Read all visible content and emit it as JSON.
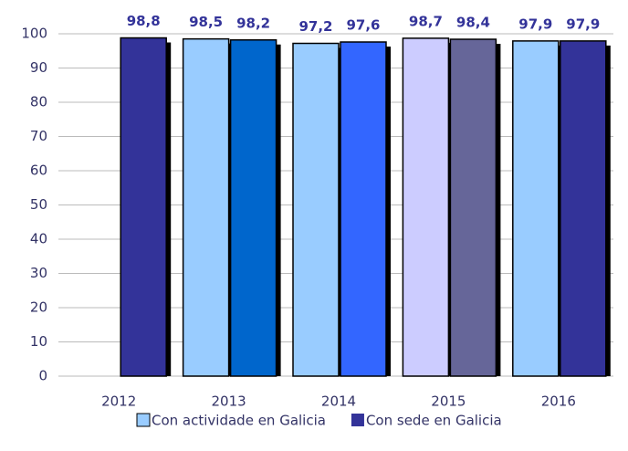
{
  "chart_data": {
    "type": "bar",
    "categories": [
      "2012",
      "2013",
      "2014",
      "2015",
      "2016"
    ],
    "series": [
      {
        "name": "Con actividade en Galicia",
        "color": "#99ccff",
        "colors": [
          null,
          "#99ccff",
          "#99ccff",
          "#ccccff",
          "#99ccff"
        ],
        "values": [
          null,
          98.5,
          97.2,
          98.7,
          97.9
        ],
        "value_labels": [
          null,
          "98,5",
          "97,2",
          "98,7",
          "97,9"
        ]
      },
      {
        "name": "Con sede en Galicia",
        "color": "#333399",
        "colors": [
          "#333399",
          "#0066cc",
          "#3366ff",
          "#666699",
          "#333399"
        ],
        "values": [
          98.8,
          98.2,
          97.6,
          98.4,
          97.9
        ],
        "value_labels": [
          "98,8",
          "98,2",
          "97,6",
          "98,4",
          "97,9"
        ]
      }
    ],
    "ylim": [
      0,
      100
    ],
    "yticks": [
      0,
      10,
      20,
      30,
      40,
      50,
      60,
      70,
      80,
      90,
      100
    ],
    "grid": true,
    "legend": "bottom"
  }
}
